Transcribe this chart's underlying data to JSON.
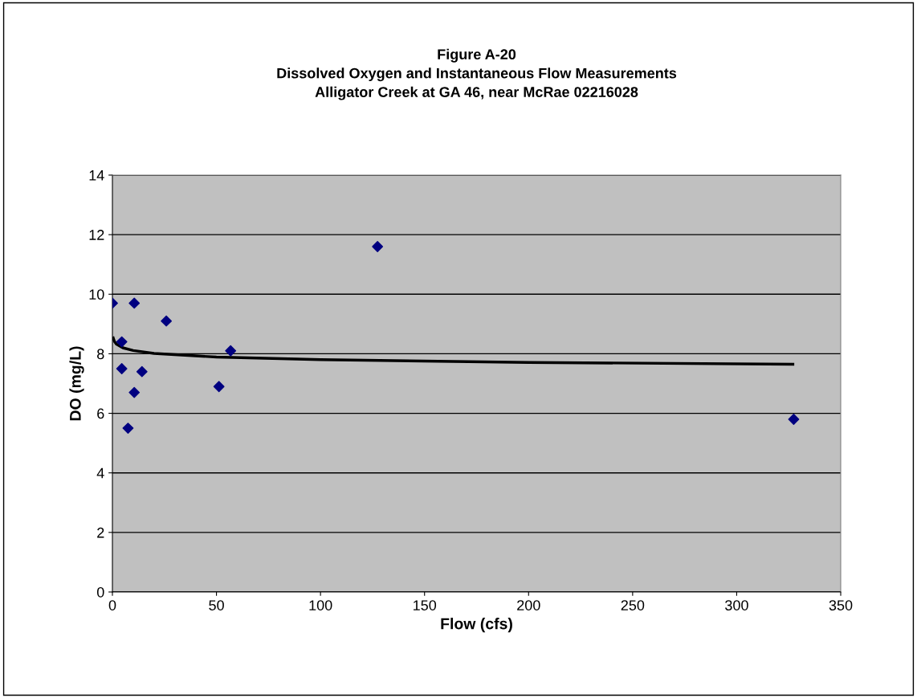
{
  "chart_data": {
    "type": "scatter",
    "title": "Figure A-20\nDissolved Oxygen and Instantaneous Flow Measurements\nAlligator Creek at GA 46, near McRae 02216028",
    "xlabel": "Flow (cfs)",
    "ylabel": "DO (mg/L)",
    "series": [
      {
        "color": "#000080",
        "marker": "diamond",
        "x": [
          0,
          10.5,
          25.9,
          4.5,
          56.8,
          4.5,
          14.2,
          51.2,
          10.5,
          7.5,
          127.4,
          327.4
        ],
        "values": [
          9.7,
          9.7,
          9.1,
          8.4,
          8.1,
          7.5,
          7.4,
          6.9,
          6.7,
          5.5,
          11.6,
          5.8
        ]
      },
      {
        "type": "line",
        "color": "#000000",
        "marker": "none",
        "line_style": "solid",
        "x": [
          0.4,
          1,
          2,
          5,
          10,
          20,
          50,
          100,
          200,
          327
        ],
        "values": [
          8.53,
          8.41,
          8.32,
          8.2,
          8.11,
          8.01,
          7.89,
          7.8,
          7.71,
          7.65
        ]
      }
    ],
    "xlim": [
      0,
      350
    ],
    "xticks": [
      0,
      50,
      100,
      150,
      200,
      250,
      300,
      350
    ],
    "ylim": [
      0,
      14
    ],
    "yticks": [
      0,
      2,
      4,
      6,
      8,
      10,
      12,
      14
    ],
    "grid": "y",
    "legend": false
  }
}
